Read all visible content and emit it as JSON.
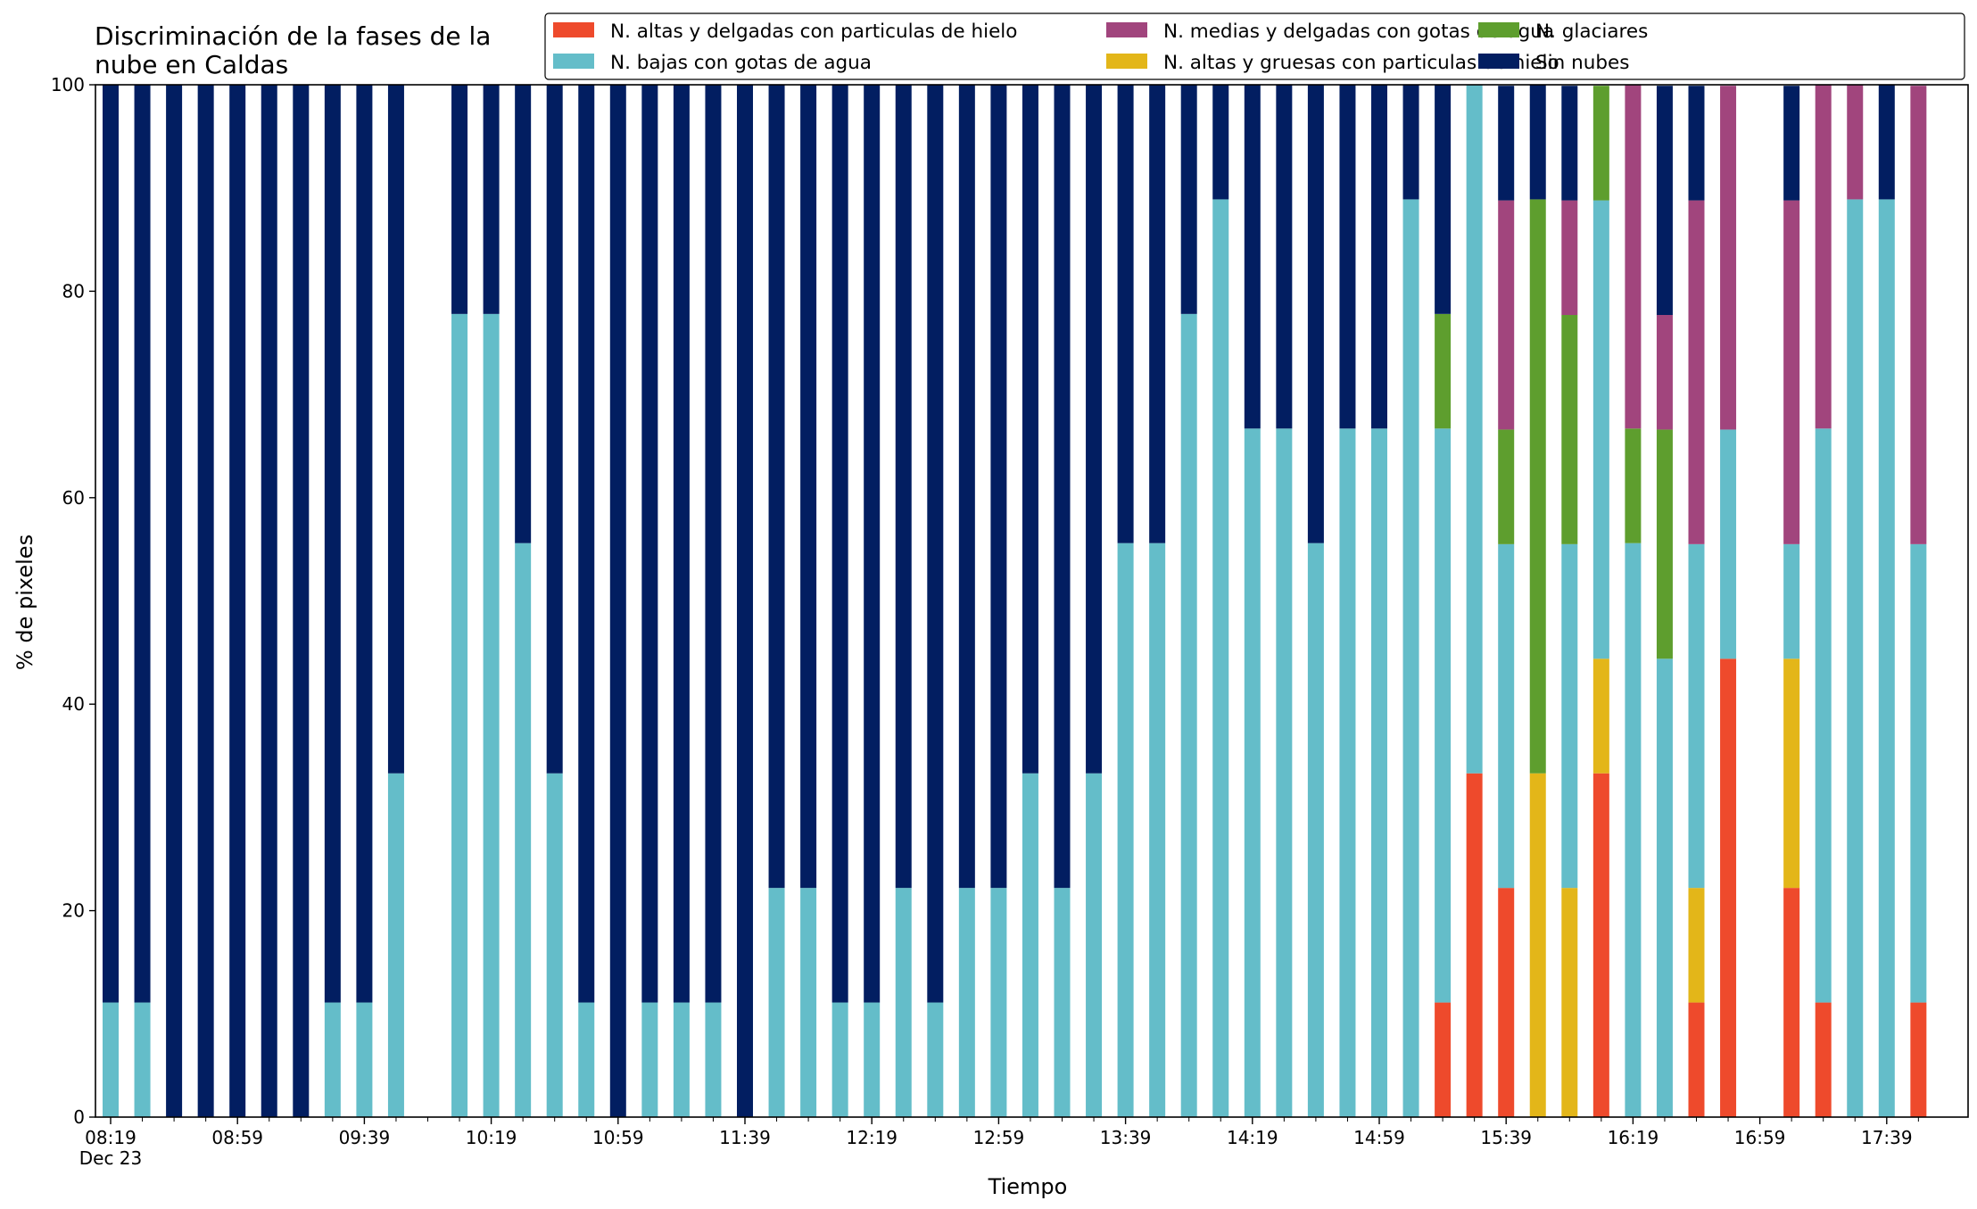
{
  "chart_data": {
    "type": "bar",
    "stacked": true,
    "title_lines": [
      "Discriminación de la fases de la",
      "nube en Caldas"
    ],
    "xlabel": "Tiempo",
    "ylabel": "% de pixeles",
    "ylim": [
      0,
      100
    ],
    "yticks": [
      0,
      20,
      40,
      60,
      80,
      100
    ],
    "time_start": "08:19",
    "interval_minutes": 10,
    "slot_count": 58,
    "xtick_labels": [
      "08:19",
      "08:59",
      "09:39",
      "10:19",
      "10:59",
      "11:39",
      "12:19",
      "12:59",
      "13:39",
      "14:19",
      "14:59",
      "15:39",
      "16:19",
      "16:59",
      "17:39"
    ],
    "date_label": "Dec 23",
    "legend_position": "top-right",
    "series": [
      {
        "name": "N. altas y delgadas con particulas de hielo",
        "color": "#EE4A2C"
      },
      {
        "name": "N. altas y gruesas con particulas de hielo",
        "color": "#E3B619"
      },
      {
        "name": "N. bajas con gotas de agua",
        "color": "#64BDC9"
      },
      {
        "name": "N. glaciares",
        "color": "#5E9E2E"
      },
      {
        "name": "N. medias y delgadas con gotas de agua",
        "color": "#A1457D"
      },
      {
        "name": "Sin nubes",
        "color": "#021E61"
      }
    ],
    "legend_order": [
      0,
      2,
      4,
      1,
      3,
      5
    ],
    "bars": [
      {
        "time": "08:19",
        "values": [
          0,
          0,
          11.1,
          0,
          0,
          88.9
        ]
      },
      {
        "time": "08:29",
        "values": [
          0,
          0,
          11.1,
          0,
          0,
          88.9
        ]
      },
      {
        "time": "08:39",
        "values": [
          0,
          0,
          0,
          0,
          0,
          100
        ]
      },
      {
        "time": "08:49",
        "values": [
          0,
          0,
          0,
          0,
          0,
          100
        ]
      },
      {
        "time": "08:59",
        "values": [
          0,
          0,
          0,
          0,
          0,
          100
        ]
      },
      {
        "time": "09:09",
        "values": [
          0,
          0,
          0,
          0,
          0,
          100
        ]
      },
      {
        "time": "09:19",
        "values": [
          0,
          0,
          0,
          0,
          0,
          100
        ]
      },
      {
        "time": "09:29",
        "values": [
          0,
          0,
          11.1,
          0,
          0,
          88.9
        ]
      },
      {
        "time": "09:39",
        "values": [
          0,
          0,
          11.1,
          0,
          0,
          88.9
        ]
      },
      {
        "time": "09:49",
        "values": [
          0,
          0,
          33.3,
          0,
          0,
          66.7
        ]
      },
      {
        "time": "10:09",
        "values": [
          0,
          0,
          77.8,
          0,
          0,
          22.2
        ]
      },
      {
        "time": "10:19",
        "values": [
          0,
          0,
          77.8,
          0,
          0,
          22.2
        ]
      },
      {
        "time": "10:29",
        "values": [
          0,
          0,
          55.6,
          0,
          0,
          44.4
        ]
      },
      {
        "time": "10:39",
        "values": [
          0,
          0,
          33.3,
          0,
          0,
          66.7
        ]
      },
      {
        "time": "10:49",
        "values": [
          0,
          0,
          11.1,
          0,
          0,
          88.9
        ]
      },
      {
        "time": "10:59",
        "values": [
          0,
          0,
          0,
          0,
          0,
          100
        ]
      },
      {
        "time": "11:09",
        "values": [
          0,
          0,
          11.1,
          0,
          0,
          88.9
        ]
      },
      {
        "time": "11:19",
        "values": [
          0,
          0,
          11.1,
          0,
          0,
          88.9
        ]
      },
      {
        "time": "11:29",
        "values": [
          0,
          0,
          11.1,
          0,
          0,
          88.9
        ]
      },
      {
        "time": "11:39",
        "values": [
          0,
          0,
          0,
          0,
          0,
          100
        ]
      },
      {
        "time": "11:49",
        "values": [
          0,
          0,
          22.2,
          0,
          0,
          77.8
        ]
      },
      {
        "time": "11:59",
        "values": [
          0,
          0,
          22.2,
          0,
          0,
          77.8
        ]
      },
      {
        "time": "12:09",
        "values": [
          0,
          0,
          11.1,
          0,
          0,
          88.9
        ]
      },
      {
        "time": "12:19",
        "values": [
          0,
          0,
          11.1,
          0,
          0,
          88.9
        ]
      },
      {
        "time": "12:29",
        "values": [
          0,
          0,
          22.2,
          0,
          0,
          77.8
        ]
      },
      {
        "time": "12:39",
        "values": [
          0,
          0,
          11.1,
          0,
          0,
          88.9
        ]
      },
      {
        "time": "12:49",
        "values": [
          0,
          0,
          22.2,
          0,
          0,
          77.8
        ]
      },
      {
        "time": "12:59",
        "values": [
          0,
          0,
          22.2,
          0,
          0,
          77.8
        ]
      },
      {
        "time": "13:09",
        "values": [
          0,
          0,
          33.3,
          0,
          0,
          66.7
        ]
      },
      {
        "time": "13:19",
        "values": [
          0,
          0,
          22.2,
          0,
          0,
          77.8
        ]
      },
      {
        "time": "13:29",
        "values": [
          0,
          0,
          33.3,
          0,
          0,
          66.7
        ]
      },
      {
        "time": "13:39",
        "values": [
          0,
          0,
          55.6,
          0,
          0,
          44.4
        ]
      },
      {
        "time": "13:49",
        "values": [
          0,
          0,
          55.6,
          0,
          0,
          44.4
        ]
      },
      {
        "time": "13:59",
        "values": [
          0,
          0,
          77.8,
          0,
          0,
          22.2
        ]
      },
      {
        "time": "14:09",
        "values": [
          0,
          0,
          88.9,
          0,
          0,
          11.1
        ]
      },
      {
        "time": "14:19",
        "values": [
          0,
          0,
          66.7,
          0,
          0,
          33.3
        ]
      },
      {
        "time": "14:29",
        "values": [
          0,
          0,
          66.7,
          0,
          0,
          33.3
        ]
      },
      {
        "time": "14:39",
        "values": [
          0,
          0,
          55.6,
          0,
          0,
          44.4
        ]
      },
      {
        "time": "14:49",
        "values": [
          0,
          0,
          66.7,
          0,
          0,
          33.3
        ]
      },
      {
        "time": "14:59",
        "values": [
          0,
          0,
          66.7,
          0,
          0,
          33.3
        ]
      },
      {
        "time": "15:09",
        "values": [
          0,
          0,
          88.9,
          0,
          0,
          11.1
        ]
      },
      {
        "time": "15:19",
        "values": [
          11.1,
          0,
          55.6,
          11.1,
          0,
          22.2
        ]
      },
      {
        "time": "15:29",
        "values": [
          33.3,
          0,
          66.7,
          0,
          0,
          0
        ]
      },
      {
        "time": "15:39",
        "values": [
          22.2,
          0,
          33.3,
          11.1,
          22.2,
          11.1
        ]
      },
      {
        "time": "15:49",
        "values": [
          0,
          33.3,
          0,
          55.6,
          0,
          11.1
        ]
      },
      {
        "time": "15:59",
        "values": [
          0,
          22.2,
          33.3,
          22.2,
          11.1,
          11.1
        ]
      },
      {
        "time": "16:09",
        "values": [
          33.3,
          11.1,
          44.4,
          11.1,
          0,
          0
        ]
      },
      {
        "time": "16:19",
        "values": [
          0,
          0,
          55.6,
          11.1,
          33.3,
          0
        ]
      },
      {
        "time": "16:29",
        "values": [
          0,
          0,
          44.4,
          22.2,
          11.1,
          22.2
        ]
      },
      {
        "time": "16:39",
        "values": [
          11.1,
          11.1,
          33.3,
          0,
          33.3,
          11.1
        ]
      },
      {
        "time": "16:49",
        "values": [
          44.4,
          0,
          22.2,
          0,
          33.3,
          0
        ]
      },
      {
        "time": "17:09",
        "values": [
          22.2,
          22.2,
          11.1,
          0,
          33.3,
          11.1
        ]
      },
      {
        "time": "17:19",
        "values": [
          11.1,
          0,
          55.6,
          0,
          33.3,
          0
        ]
      },
      {
        "time": "17:29",
        "values": [
          0,
          0,
          88.9,
          0,
          11.1,
          0
        ]
      },
      {
        "time": "17:39",
        "values": [
          0,
          0,
          88.9,
          0,
          0,
          11.1
        ]
      },
      {
        "time": "17:49",
        "values": [
          11.1,
          0,
          44.4,
          0,
          44.4,
          0
        ]
      }
    ]
  }
}
